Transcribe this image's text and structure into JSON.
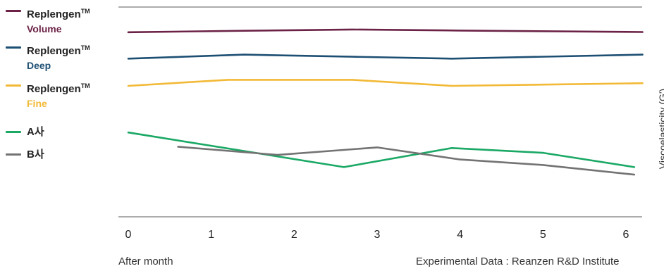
{
  "chart_data": {
    "type": "line",
    "x": [
      0,
      1,
      2,
      3,
      4,
      5,
      6
    ],
    "xlim": [
      0,
      6.2
    ],
    "ylim": [
      0,
      100
    ],
    "ylabel": "Viscoelasticity (G')",
    "grid": false,
    "legend_position": "left",
    "series": [
      {
        "name": "Replengen",
        "tm": "TM",
        "sub": "Volume",
        "color": "#6b2246",
        "sub_color": "#6b2246",
        "points": [
          [
            0,
            88
          ],
          [
            1.4,
            88.7
          ],
          [
            2.7,
            89.3
          ],
          [
            4.0,
            88.8
          ],
          [
            6.2,
            88.1
          ]
        ]
      },
      {
        "name": "Replengen",
        "tm": "TM",
        "sub": "Deep",
        "color": "#1d4f73",
        "sub_color": "#1d4f73",
        "points": [
          [
            0,
            75.4
          ],
          [
            1.4,
            77.3
          ],
          [
            2.7,
            76.3
          ],
          [
            3.9,
            75.4
          ],
          [
            6.2,
            77.3
          ]
        ]
      },
      {
        "name": "Replengen",
        "tm": "TM",
        "sub": "Fine",
        "color": "#f2b936",
        "sub_color": "#f2b936",
        "points": [
          [
            0,
            62.4
          ],
          [
            1.2,
            65.3
          ],
          [
            2.7,
            65.3
          ],
          [
            3.9,
            62.4
          ],
          [
            6.2,
            63.7
          ]
        ]
      },
      {
        "name": "A사",
        "color": "#1aa865",
        "points": [
          [
            0,
            40.2
          ],
          [
            2.6,
            23.7
          ],
          [
            3.9,
            32.8
          ],
          [
            5.0,
            30.5
          ],
          [
            6.1,
            23.7
          ]
        ]
      },
      {
        "name": "B사",
        "color": "#737373",
        "points": [
          [
            0.6,
            33.4
          ],
          [
            1.8,
            29.5
          ],
          [
            3.0,
            33.1
          ],
          [
            4.0,
            27.3
          ],
          [
            5.0,
            24.7
          ],
          [
            6.1,
            20.1
          ]
        ]
      }
    ]
  },
  "footer": {
    "xlabel": "After month",
    "source": "Experimental Data : Reanzen R&D Institute"
  }
}
